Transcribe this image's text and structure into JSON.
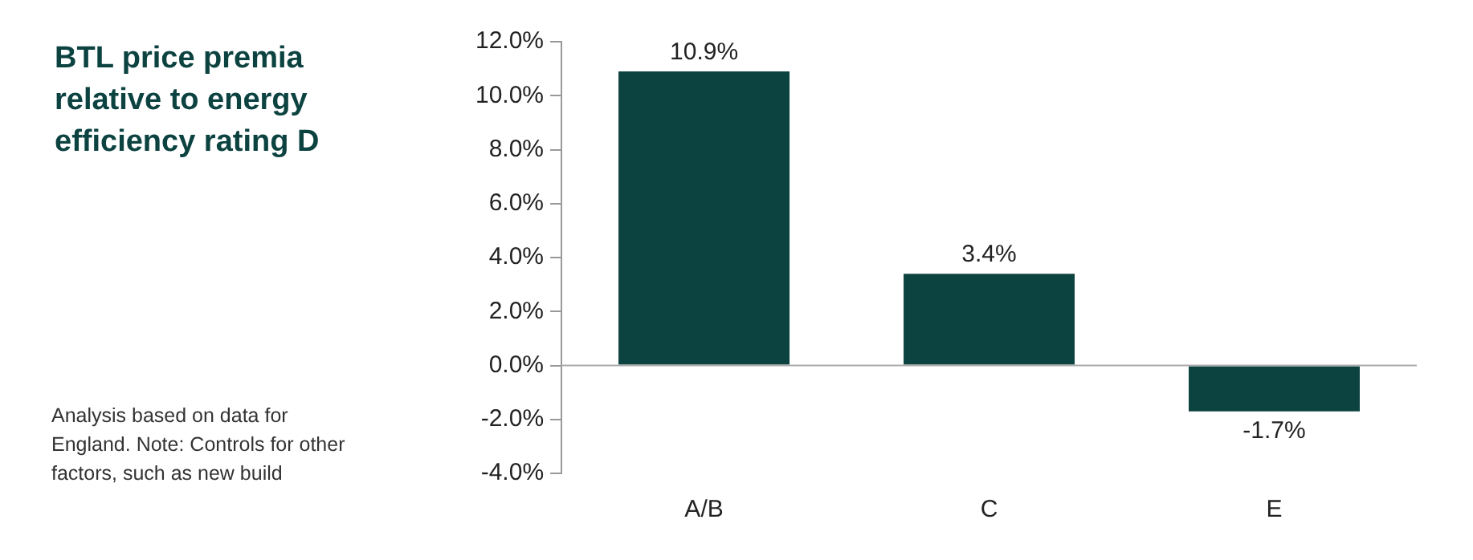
{
  "chart_data": {
    "type": "bar",
    "title": "BTL price premia relative to energy efficiency rating D",
    "categories": [
      "A/B",
      "C",
      "E"
    ],
    "values": [
      10.9,
      3.4,
      -1.7
    ],
    "value_labels": [
      "10.9%",
      "3.4%",
      "-1.7%"
    ],
    "color": "#0c4341",
    "ylim": [
      -4,
      12
    ],
    "yticks": [
      {
        "value": -4,
        "label": "-4.0%"
      },
      {
        "value": -2,
        "label": "-2.0%"
      },
      {
        "value": 0,
        "label": "0.0%"
      },
      {
        "value": 2,
        "label": "2.0%"
      },
      {
        "value": 4,
        "label": "4.0%"
      },
      {
        "value": 6,
        "label": "6.0%"
      },
      {
        "value": 8,
        "label": "8.0%"
      },
      {
        "value": 10,
        "label": "10.0%"
      },
      {
        "value": 12,
        "label": "12.0%"
      }
    ],
    "grid": false,
    "ref_lines": [
      {
        "axis": "y",
        "value": 0,
        "color": "#aaaaaa"
      }
    ],
    "legend": false,
    "annotations": [
      "Analysis based on data for England. Note: Controls for other factors, such as new build"
    ]
  }
}
